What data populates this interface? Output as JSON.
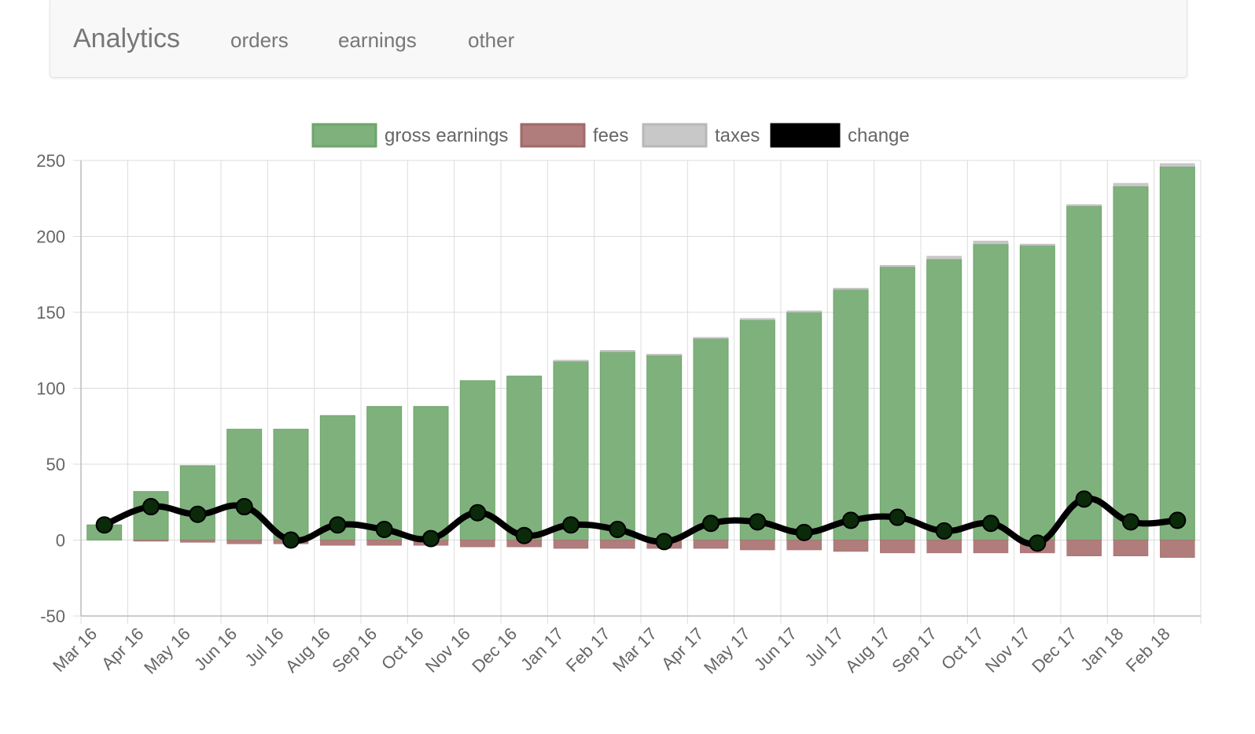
{
  "navbar": {
    "brand": "Analytics",
    "items": [
      {
        "id": "orders",
        "label": "orders"
      },
      {
        "id": "earnings",
        "label": "earnings"
      },
      {
        "id": "other",
        "label": "other"
      }
    ]
  },
  "colors": {
    "gross": "#7fb17c",
    "gross_border": "#6fa56c",
    "fees": "#b17c7c",
    "fees_border": "#a06a6a",
    "taxes": "#c8c8c8",
    "taxes_border": "#b8b8b8",
    "change": "#000000",
    "grid": "#dcdcdc",
    "axis": "#bbbbbb",
    "tick_text": "#666666",
    "legend_text": "#666666"
  },
  "chart_data": {
    "type": "bar",
    "categories": [
      "Mar 16",
      "Apr 16",
      "May 16",
      "Jun 16",
      "Jul 16",
      "Aug 16",
      "Sep 16",
      "Oct 16",
      "Nov 16",
      "Dec 16",
      "Jan 17",
      "Feb 17",
      "Mar 17",
      "Apr 17",
      "May 17",
      "Jun 17",
      "Jul 17",
      "Aug 17",
      "Sep 17",
      "Oct 17",
      "Nov 17",
      "Dec 17",
      "Jan 18",
      "Feb 18"
    ],
    "series": [
      {
        "name": "gross earnings",
        "type": "bar",
        "values": [
          10,
          32,
          49,
          73,
          73,
          82,
          88,
          88,
          105,
          108,
          118,
          124,
          122,
          133,
          145,
          150,
          165,
          180,
          185,
          195,
          194,
          220,
          233,
          246
        ]
      },
      {
        "name": "fees",
        "type": "bar",
        "values": [
          0,
          -0.5,
          -1.5,
          -2.5,
          -2.5,
          -3.5,
          -3.5,
          -3.5,
          -4.5,
          -4.5,
          -5.5,
          -5.5,
          -5.5,
          -5.5,
          -6.5,
          -6.5,
          -7.5,
          -8.5,
          -8.5,
          -8.5,
          -8.5,
          -10.5,
          -10.5,
          -11.5
        ]
      },
      {
        "name": "taxes",
        "type": "bar",
        "values": [
          0,
          0,
          0,
          0,
          0,
          0,
          0,
          0,
          0,
          0,
          0.5,
          1,
          0.5,
          0.5,
          1,
          1,
          1,
          1,
          2,
          2,
          1,
          1,
          2,
          2
        ]
      },
      {
        "name": "change",
        "type": "line",
        "values": [
          10,
          22,
          17,
          22,
          0,
          10,
          7,
          1,
          18,
          3,
          10,
          7,
          -1,
          11,
          12,
          5,
          13,
          15,
          6,
          11,
          -2,
          27,
          12,
          13
        ]
      }
    ],
    "yticks": [
      "250",
      "200",
      "150",
      "100",
      "50",
      "0",
      "-50"
    ],
    "ylim": [
      -50,
      250
    ],
    "grid": true,
    "legend_position": "top-center"
  }
}
